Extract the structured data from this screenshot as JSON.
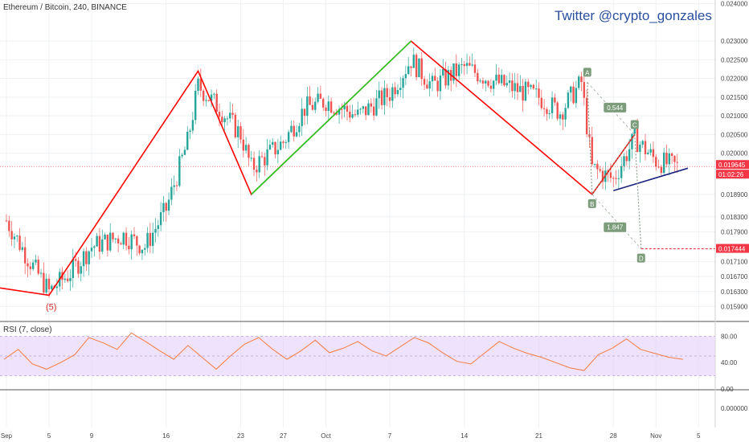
{
  "header": {
    "symbol_title": "Ethereum / Bitcoin, 240, BINANCE",
    "watermark": "Twitter  @crypto_gonzales"
  },
  "chart_data": {
    "type": "candlestick",
    "title": "Ethereum / Bitcoin, 240, BINANCE",
    "price_axis": {
      "tick_labels": [
        "0.024000",
        "0.023000",
        "0.022500",
        "0.022000",
        "0.021500",
        "0.021000",
        "0.020500",
        "0.020000",
        "0.018900",
        "0.018300",
        "0.017900",
        "0.017100",
        "0.016700",
        "0.016300",
        "0.015900"
      ],
      "ylim": [
        0.0155,
        0.0241
      ]
    },
    "time_axis": {
      "tick_labels": [
        "Sep",
        "5",
        "9",
        "16",
        "23",
        "27",
        "Oct",
        "7",
        "14",
        "21",
        "28",
        "Nov",
        "5"
      ]
    },
    "price_path": [
      [
        "Sep 1",
        0.0182
      ],
      [
        "Sep 3",
        0.0172
      ],
      [
        "Sep 5",
        0.0163
      ],
      [
        "Sep 7",
        0.0168
      ],
      [
        "Sep 9",
        0.0175
      ],
      [
        "Sep 12",
        0.0178
      ],
      [
        "Sep 14",
        0.0175
      ],
      [
        "Sep 16",
        0.0185
      ],
      [
        "Sep 18",
        0.0203
      ],
      [
        "Sep 19",
        0.0218
      ],
      [
        "Sep 21",
        0.0212
      ],
      [
        "Sep 23",
        0.0205
      ],
      [
        "Sep 24",
        0.0196
      ],
      [
        "Sep 27",
        0.0203
      ],
      [
        "Sep 29",
        0.0212
      ],
      [
        "Oct 1",
        0.0214
      ],
      [
        "Oct 4",
        0.021
      ],
      [
        "Oct 7",
        0.0216
      ],
      [
        "Oct 9",
        0.0225
      ],
      [
        "Oct 11",
        0.0218
      ],
      [
        "Oct 14",
        0.0223
      ],
      [
        "Oct 17",
        0.0219
      ],
      [
        "Oct 21",
        0.0215
      ],
      [
        "Oct 23",
        0.0211
      ],
      [
        "Oct 25",
        0.0219
      ],
      [
        "Oct 26",
        0.0196
      ],
      [
        "Oct 28",
        0.0193
      ],
      [
        "Oct 30",
        0.0204
      ],
      [
        "Nov 1",
        0.0198
      ],
      [
        "Nov 3",
        0.01964
      ]
    ],
    "wave_lines": [
      {
        "color": "#ff0000",
        "points": [
          [
            "Aug 29",
            0.0165
          ],
          [
            "Sep 5",
            0.0162
          ],
          [
            "Sep 19",
            0.0222
          ],
          [
            "Sep 24",
            0.0189
          ],
          [
            "Oct 9",
            0.023
          ],
          [
            "Oct 26",
            0.0189
          ],
          [
            "Oct 30",
            0.0205
          ]
        ]
      },
      {
        "color": "#22cc22",
        "points": [
          [
            "Sep 24",
            0.0189
          ],
          [
            "Oct 9",
            0.023
          ]
        ]
      },
      {
        "color": "#1a237e",
        "points": [
          [
            "Oct 28",
            0.019
          ],
          [
            "Nov 4",
            0.0196
          ]
        ]
      }
    ],
    "wave_label": {
      "text": "(5)",
      "x": "Sep 5",
      "y": 0.0162
    },
    "harmonic": {
      "points": [
        {
          "label": "A",
          "x": "Oct 26",
          "y": 0.0219
        },
        {
          "label": "B",
          "x": "Oct 26",
          "y": 0.0189
        },
        {
          "label": "C",
          "x": "Oct 30",
          "y": 0.0205
        },
        {
          "label": "D",
          "x": "Oct 30",
          "y": 0.017444
        }
      ],
      "ratios": [
        {
          "text": "0.544",
          "x": "Oct 28",
          "y": 0.0212
        },
        {
          "text": "1.847",
          "x": "Oct 28",
          "y": 0.018
        }
      ]
    },
    "current_price": {
      "label": "0.019645",
      "countdown": "01:02:26",
      "color": "#f23645"
    },
    "target_price": {
      "label": "0.017444",
      "color": "#f23645"
    },
    "rsi": {
      "label": "RSI (7, close)",
      "tick_labels": [
        "80.00",
        "40.00",
        "0.00"
      ],
      "upper_band": 80,
      "lower_band": 20,
      "color": "#f57c42",
      "band_color": "#e7d6fb",
      "values": [
        45,
        60,
        38,
        30,
        40,
        52,
        78,
        70,
        60,
        85,
        72,
        58,
        45,
        66,
        48,
        30,
        50,
        68,
        78,
        60,
        45,
        58,
        74,
        55,
        62,
        72,
        58,
        50,
        64,
        78,
        70,
        55,
        42,
        38,
        55,
        72,
        62,
        54,
        48,
        40,
        32,
        28,
        52,
        62,
        76,
        60,
        54,
        48,
        45
      ]
    },
    "lower_axis": {
      "tick_labels": [
        "0.000000"
      ]
    }
  }
}
